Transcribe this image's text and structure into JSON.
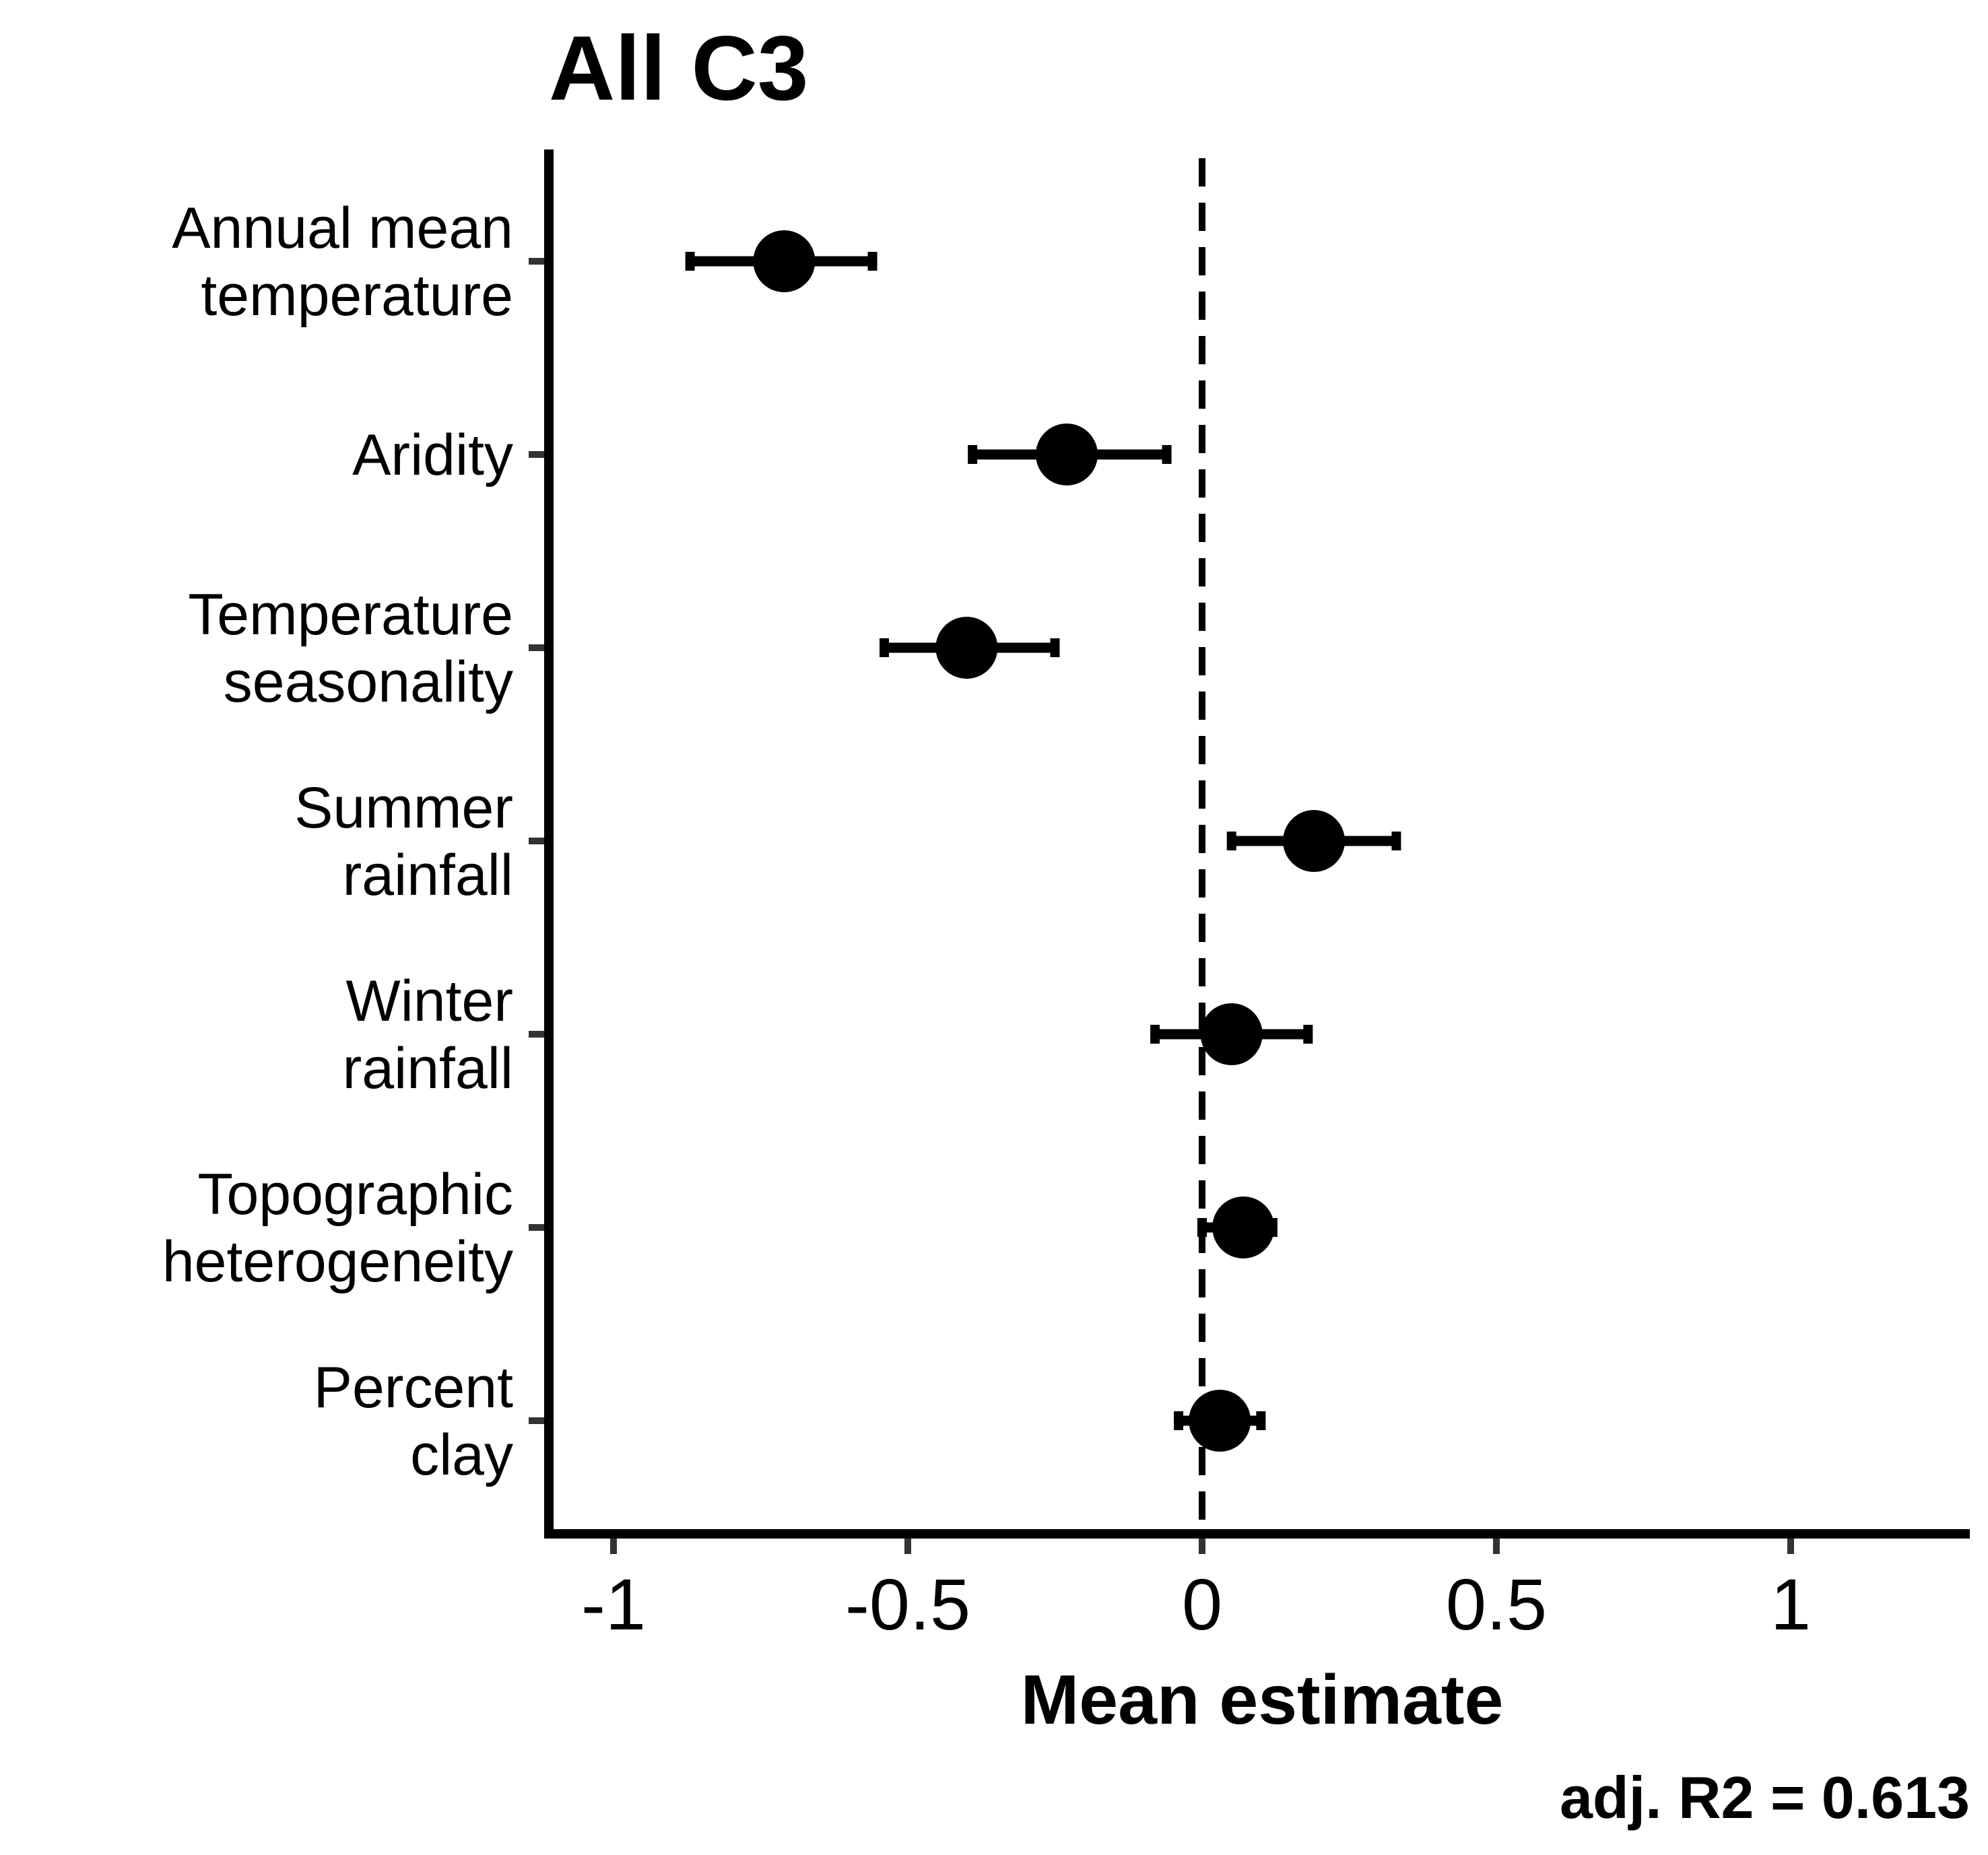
{
  "chart_data": {
    "type": "scatter",
    "title": "All C3",
    "xlabel": "Mean estimate",
    "ylabel": "",
    "xlim": [
      -1.11,
      1.31
    ],
    "xticks": [
      -1,
      -0.5,
      0,
      0.5,
      1
    ],
    "xtick_labels": [
      "-1",
      "-0.5",
      "0",
      "0.5",
      "1"
    ],
    "reference_line": {
      "x": 0,
      "style": "dashed"
    },
    "grid": false,
    "legend": "none",
    "categories": [
      {
        "lines": [
          "Annual mean",
          "temperature"
        ]
      },
      {
        "lines": [
          "Aridity"
        ]
      },
      {
        "lines": [
          "Temperature",
          "seasonality"
        ]
      },
      {
        "lines": [
          "Summer",
          "rainfall"
        ]
      },
      {
        "lines": [
          "Winter",
          "rainfall"
        ]
      },
      {
        "lines": [
          "Topographic",
          "heterogeneity"
        ]
      },
      {
        "lines": [
          "Percent",
          "clay"
        ]
      }
    ],
    "estimates": [
      -0.71,
      -0.23,
      -0.4,
      0.19,
      0.05,
      0.07,
      0.03
    ],
    "ci_lower": [
      -0.87,
      -0.39,
      -0.54,
      0.05,
      -0.08,
      0.0,
      -0.04
    ],
    "ci_upper": [
      -0.56,
      -0.06,
      -0.25,
      0.33,
      0.18,
      0.12,
      0.1
    ],
    "annotation": "adj. R2 = 0.613",
    "colors": {
      "points": "#000000",
      "axis": "#000000"
    }
  }
}
